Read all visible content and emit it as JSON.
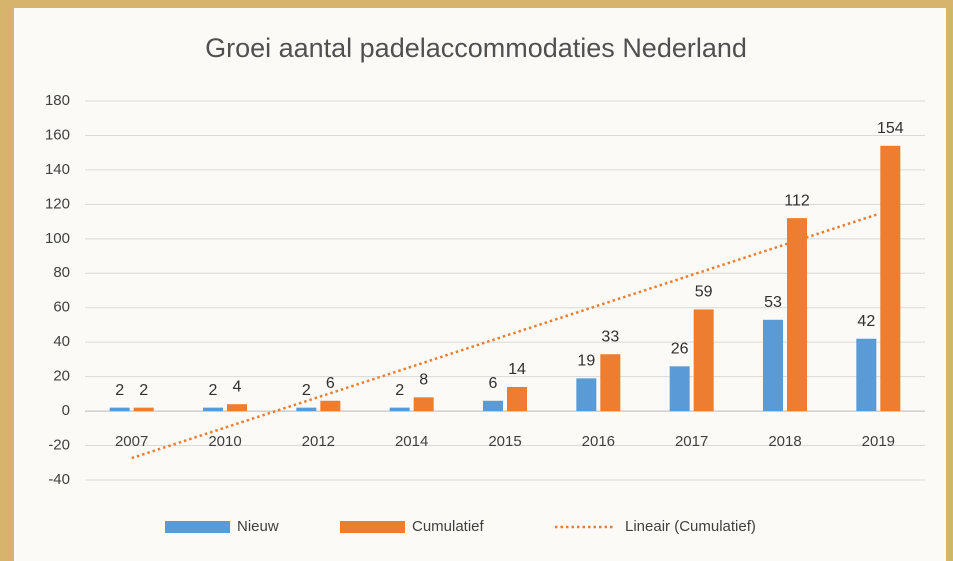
{
  "chart_data": {
    "type": "bar",
    "title": "Groei aantal padelaccommodaties Nederland",
    "categories": [
      "2007",
      "2010",
      "2012",
      "2014",
      "2015",
      "2016",
      "2017",
      "2018",
      "2019"
    ],
    "series": [
      {
        "name": "Nieuw",
        "color": "#5b9bd5",
        "values": [
          2,
          2,
          2,
          2,
          6,
          19,
          26,
          53,
          42
        ]
      },
      {
        "name": "Cumulatief",
        "color": "#ed7d31",
        "values": [
          2,
          4,
          6,
          8,
          14,
          33,
          59,
          112,
          154
        ]
      },
      {
        "name": "Lineair (Cumulatief)",
        "color": "#ed7d31",
        "type": "line",
        "dash": "dotted",
        "values": [
          -27.3,
          -9.6,
          8.1,
          25.8,
          43.6,
          61.3,
          79.0,
          96.7,
          114.4
        ]
      }
    ],
    "ylim": [
      -40,
      180
    ],
    "yticks": [
      -40,
      -20,
      0,
      20,
      40,
      60,
      80,
      100,
      120,
      140,
      160,
      180
    ],
    "grid": true,
    "legend": "bottom"
  }
}
